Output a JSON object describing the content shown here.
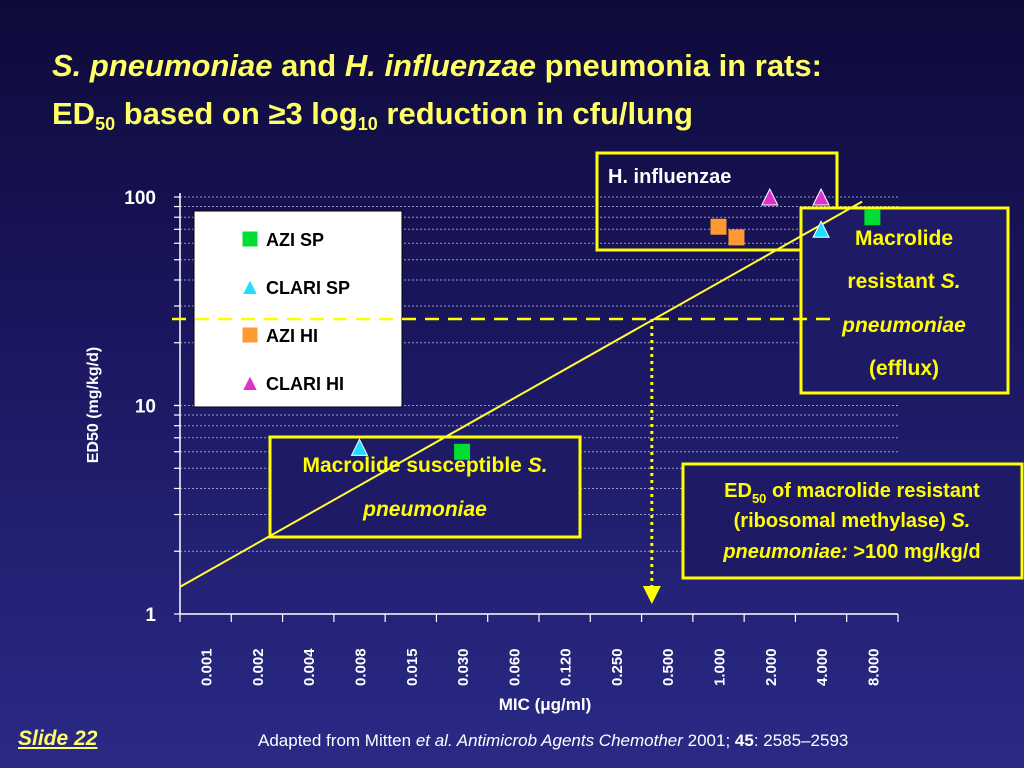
{
  "title": {
    "line1_a": "S. pneumoniae",
    "line1_b": " and ",
    "line1_c": "H. influenzae",
    "line1_d": " pneumonia in rats:",
    "line2_a": "ED",
    "line2_sub1": "50",
    "line2_b": " based on ",
    "line2_sym": "≥",
    "line2_c": "3 log",
    "line2_sub2": "10",
    "line2_d": " reduction in cfu/lung"
  },
  "chart_data": {
    "type": "scatter",
    "xlabel": "MIC (μg/ml)",
    "ylabel": "ED50 (mg/kg/d)",
    "y_scale": "log",
    "ylim": [
      1,
      100
    ],
    "y_ticks": [
      "1",
      "10",
      "100"
    ],
    "categories": [
      "0.001",
      "0.002",
      "0.004",
      "0.008",
      "0.015",
      "0.030",
      "0.060",
      "0.120",
      "0.250",
      "0.500",
      "1.000",
      "2.000",
      "4.000",
      "8.000"
    ],
    "series": [
      {
        "name": "AZI SP",
        "marker": "square",
        "color": "#00dd33",
        "points": [
          {
            "x": 6,
            "y": 6
          },
          {
            "x": 14,
            "y": 80
          }
        ]
      },
      {
        "name": "CLARI SP",
        "marker": "triangle",
        "color": "#22ddff",
        "points": [
          {
            "x": 4,
            "y": 6.3
          },
          {
            "x": 13,
            "y": 70
          }
        ]
      },
      {
        "name": "AZI HI",
        "marker": "square",
        "color": "#ff9933",
        "points": [
          {
            "x": 11,
            "y": 72
          },
          {
            "x": 11.35,
            "y": 64
          }
        ]
      },
      {
        "name": "CLARI HI",
        "marker": "triangle",
        "color": "#dd33cc",
        "points": [
          {
            "x": 12,
            "y": 100
          },
          {
            "x": 13,
            "y": 100
          }
        ]
      }
    ],
    "trend_line": {
      "from": {
        "x": 0.5,
        "y": 1.35
      },
      "to": {
        "x": 13.8,
        "y": 95
      },
      "color": "#ffff33"
    },
    "threshold": {
      "y": 26,
      "x": 9.7
    },
    "legend_position": "top-left",
    "grid": true
  },
  "annotations": {
    "hinf": "H. influenzae",
    "macrolide_resistant": [
      "Macrolide",
      "resistant  ",
      "S.",
      "pneumoniae",
      "(efflux)"
    ],
    "susceptible": [
      "Macrolide susceptible ",
      "S.",
      "pneumoniae"
    ],
    "ed50_resistant": [
      "ED",
      "50",
      " of macrolide resistant",
      "(ribosomal methylase) ",
      "S.",
      "pneumoniae: ",
      ">100 mg/kg/d"
    ]
  },
  "footer": {
    "slide": "Slide  22",
    "cite_a": "Adapted from Mitten ",
    "cite_b": "et al. Antimicrob Agents Chemother",
    "cite_c": " 2001; ",
    "cite_d": "45",
    "cite_e": ": 2585–2593"
  }
}
